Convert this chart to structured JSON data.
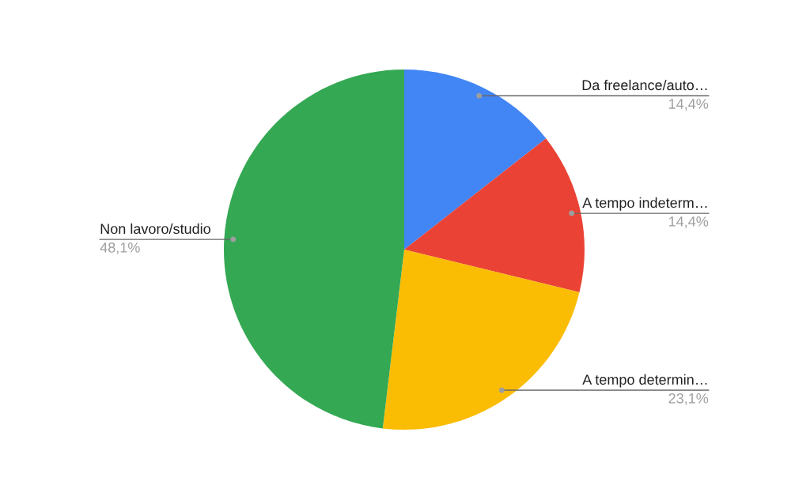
{
  "chart_data": {
    "type": "pie",
    "categories": [
      "Da freelance/auto…",
      "A tempo indeterm…",
      "A tempo determin…",
      "Non lavoro/studio"
    ],
    "values": [
      14.4,
      14.4,
      23.1,
      48.1
    ],
    "colors": [
      "#4285f4",
      "#ea4335",
      "#fbbc04",
      "#34a853"
    ],
    "value_labels": [
      "14,4%",
      "14,4%",
      "23,1%",
      "48,1%"
    ]
  }
}
